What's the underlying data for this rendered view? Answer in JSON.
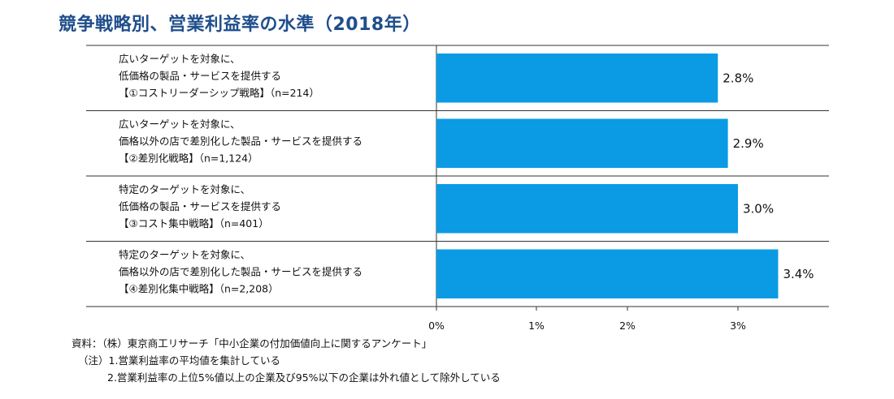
{
  "title": "競争戦略別、営業利益率の水準（2018年）",
  "chart_data": {
    "type": "bar",
    "orientation": "horizontal",
    "categories": [
      [
        "広いターゲットを対象に、",
        "低価格の製品・サービスを提供する",
        "【①コストリーダーシップ戦略】（n=214）"
      ],
      [
        "広いターゲットを対象に、",
        "価格以外の店で差別化した製品・サービスを提供する",
        "【②差別化戦略】（n=1,124）"
      ],
      [
        "特定のターゲットを対象に、",
        "低価格の製品・サービスを提供する",
        "【③コスト集中戦略】（n=401）"
      ],
      [
        "特定のターゲットを対象に、",
        "価格以外の店で差別化した製品・サービスを提供する",
        "【④差別化集中戦略】（n=2,208）"
      ]
    ],
    "values": [
      2.8,
      2.9,
      3.0,
      3.4
    ],
    "value_labels": [
      "2.8%",
      "2.9%",
      "3.0%",
      "3.4%"
    ],
    "xlim": [
      0,
      3.0
    ],
    "x_ticks": [
      0,
      1,
      2,
      3
    ],
    "x_tick_labels": [
      "0%",
      "1%",
      "2%",
      "3%"
    ],
    "bar_color": "#0a9be4",
    "grid": false
  },
  "footer": {
    "source": "資料：（株）東京商工リサーチ「中小企業の付加価値向上に関するアンケート」",
    "note1": "（注）1.営業利益率の平均値を集計している",
    "note2": "2.営業利益率の上位5%値以上の企業及び95%以下の企業は外れ値として除外している"
  },
  "colors": {
    "title": "#1f4e8c",
    "bar": "#0a9be4",
    "rule": "#333333"
  }
}
